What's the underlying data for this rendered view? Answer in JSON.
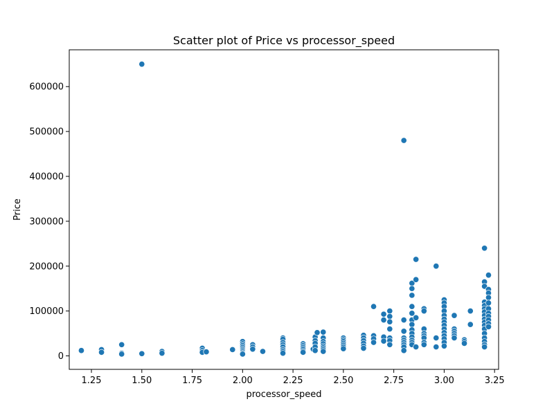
{
  "chart_data": {
    "type": "scatter",
    "title": "Scatter plot of Price vs processor_speed",
    "xlabel": "processor_speed",
    "ylabel": "Price",
    "xlim": [
      1.14,
      3.27
    ],
    "ylim": [
      -30000,
      682000
    ],
    "xticks": [
      1.25,
      1.5,
      1.75,
      2.0,
      2.25,
      2.5,
      2.75,
      3.0,
      3.25
    ],
    "xtick_labels": [
      "1.25",
      "1.50",
      "1.75",
      "2.00",
      "2.25",
      "2.50",
      "2.75",
      "3.00",
      "3.25"
    ],
    "yticks": [
      0,
      100000,
      200000,
      300000,
      400000,
      500000,
      600000
    ],
    "ytick_labels": [
      "0",
      "100000",
      "200000",
      "300000",
      "400000",
      "500000",
      "600000"
    ],
    "grid": false,
    "marker_color": "#1f77b4",
    "points": [
      [
        1.2,
        12000
      ],
      [
        1.3,
        14000
      ],
      [
        1.3,
        8000
      ],
      [
        1.4,
        25000
      ],
      [
        1.4,
        6000
      ],
      [
        1.4,
        4000
      ],
      [
        1.5,
        650000
      ],
      [
        1.5,
        5000
      ],
      [
        1.6,
        10000
      ],
      [
        1.6,
        6000
      ],
      [
        1.8,
        17000
      ],
      [
        1.8,
        12000
      ],
      [
        1.8,
        8000
      ],
      [
        1.82,
        9000
      ],
      [
        1.95,
        14000
      ],
      [
        2.0,
        32000
      ],
      [
        2.0,
        27000
      ],
      [
        2.0,
        23000
      ],
      [
        2.0,
        19000
      ],
      [
        2.0,
        15000
      ],
      [
        2.0,
        12000
      ],
      [
        2.0,
        9000
      ],
      [
        2.0,
        6000
      ],
      [
        2.0,
        4000
      ],
      [
        2.05,
        25000
      ],
      [
        2.05,
        20000
      ],
      [
        2.05,
        15000
      ],
      [
        2.1,
        10000
      ],
      [
        2.2,
        40000
      ],
      [
        2.2,
        37000
      ],
      [
        2.2,
        30000
      ],
      [
        2.2,
        25000
      ],
      [
        2.2,
        20000
      ],
      [
        2.2,
        14000
      ],
      [
        2.2,
        10000
      ],
      [
        2.2,
        6000
      ],
      [
        2.3,
        27000
      ],
      [
        2.3,
        23000
      ],
      [
        2.3,
        19000
      ],
      [
        2.3,
        15000
      ],
      [
        2.3,
        11000
      ],
      [
        2.3,
        8000
      ],
      [
        2.35,
        15000
      ],
      [
        2.36,
        42000
      ],
      [
        2.36,
        34000
      ],
      [
        2.36,
        28000
      ],
      [
        2.36,
        20000
      ],
      [
        2.36,
        12000
      ],
      [
        2.37,
        52000
      ],
      [
        2.4,
        53000
      ],
      [
        2.4,
        40000
      ],
      [
        2.4,
        32000
      ],
      [
        2.4,
        27000
      ],
      [
        2.4,
        22000
      ],
      [
        2.4,
        18000
      ],
      [
        2.4,
        14000
      ],
      [
        2.4,
        10000
      ],
      [
        2.5,
        40000
      ],
      [
        2.5,
        36000
      ],
      [
        2.5,
        32000
      ],
      [
        2.5,
        28000
      ],
      [
        2.5,
        24000
      ],
      [
        2.5,
        20000
      ],
      [
        2.5,
        16000
      ],
      [
        2.6,
        46000
      ],
      [
        2.6,
        40000
      ],
      [
        2.6,
        34000
      ],
      [
        2.6,
        28000
      ],
      [
        2.6,
        22000
      ],
      [
        2.6,
        17000
      ],
      [
        2.65,
        110000
      ],
      [
        2.65,
        45000
      ],
      [
        2.65,
        38000
      ],
      [
        2.65,
        30000
      ],
      [
        2.7,
        93000
      ],
      [
        2.7,
        80000
      ],
      [
        2.7,
        42000
      ],
      [
        2.7,
        33000
      ],
      [
        2.73,
        100000
      ],
      [
        2.73,
        88000
      ],
      [
        2.73,
        76000
      ],
      [
        2.73,
        60000
      ],
      [
        2.73,
        40000
      ],
      [
        2.73,
        34000
      ],
      [
        2.73,
        25000
      ],
      [
        2.8,
        480000
      ],
      [
        2.8,
        80000
      ],
      [
        2.8,
        55000
      ],
      [
        2.8,
        40000
      ],
      [
        2.8,
        35000
      ],
      [
        2.8,
        30000
      ],
      [
        2.8,
        25000
      ],
      [
        2.8,
        20000
      ],
      [
        2.8,
        12000
      ],
      [
        2.84,
        162000
      ],
      [
        2.84,
        150000
      ],
      [
        2.84,
        135000
      ],
      [
        2.84,
        110000
      ],
      [
        2.84,
        95000
      ],
      [
        2.84,
        80000
      ],
      [
        2.84,
        70000
      ],
      [
        2.84,
        58000
      ],
      [
        2.84,
        50000
      ],
      [
        2.84,
        42000
      ],
      [
        2.84,
        35000
      ],
      [
        2.84,
        30000
      ],
      [
        2.84,
        25000
      ],
      [
        2.86,
        215000
      ],
      [
        2.86,
        170000
      ],
      [
        2.86,
        85000
      ],
      [
        2.86,
        20000
      ],
      [
        2.9,
        105000
      ],
      [
        2.9,
        100000
      ],
      [
        2.9,
        60000
      ],
      [
        2.9,
        50000
      ],
      [
        2.9,
        45000
      ],
      [
        2.9,
        40000
      ],
      [
        2.9,
        30000
      ],
      [
        2.9,
        25000
      ],
      [
        2.96,
        200000
      ],
      [
        2.96,
        40000
      ],
      [
        2.96,
        20000
      ],
      [
        3.0,
        125000
      ],
      [
        3.0,
        118000
      ],
      [
        3.0,
        110000
      ],
      [
        3.0,
        100000
      ],
      [
        3.0,
        90000
      ],
      [
        3.0,
        82000
      ],
      [
        3.0,
        75000
      ],
      [
        3.0,
        68000
      ],
      [
        3.0,
        60000
      ],
      [
        3.0,
        52000
      ],
      [
        3.0,
        45000
      ],
      [
        3.0,
        38000
      ],
      [
        3.0,
        30000
      ],
      [
        3.0,
        22000
      ],
      [
        3.05,
        90000
      ],
      [
        3.05,
        60000
      ],
      [
        3.05,
        55000
      ],
      [
        3.05,
        50000
      ],
      [
        3.05,
        45000
      ],
      [
        3.05,
        40000
      ],
      [
        3.1,
        36000
      ],
      [
        3.1,
        32000
      ],
      [
        3.1,
        28000
      ],
      [
        3.13,
        100000
      ],
      [
        3.13,
        70000
      ],
      [
        3.2,
        240000
      ],
      [
        3.2,
        165000
      ],
      [
        3.2,
        155000
      ],
      [
        3.2,
        120000
      ],
      [
        3.2,
        112000
      ],
      [
        3.2,
        105000
      ],
      [
        3.2,
        98000
      ],
      [
        3.2,
        90000
      ],
      [
        3.2,
        82000
      ],
      [
        3.2,
        75000
      ],
      [
        3.2,
        68000
      ],
      [
        3.2,
        60000
      ],
      [
        3.2,
        50000
      ],
      [
        3.2,
        40000
      ],
      [
        3.2,
        32000
      ],
      [
        3.2,
        25000
      ],
      [
        3.2,
        20000
      ],
      [
        3.22,
        180000
      ],
      [
        3.22,
        148000
      ],
      [
        3.22,
        140000
      ],
      [
        3.22,
        130000
      ],
      [
        3.22,
        118000
      ],
      [
        3.22,
        105000
      ],
      [
        3.22,
        95000
      ],
      [
        3.22,
        88000
      ],
      [
        3.22,
        80000
      ],
      [
        3.22,
        72000
      ],
      [
        3.22,
        65000
      ]
    ]
  }
}
